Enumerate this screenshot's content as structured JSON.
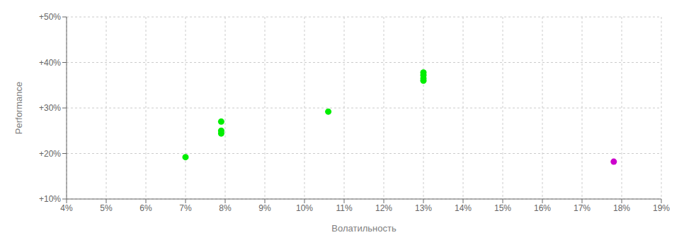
{
  "chart_data": {
    "type": "scatter",
    "xlabel": "Волатильность",
    "ylabel": "Performance",
    "xlim": [
      0.04,
      0.19
    ],
    "ylim": [
      0.1,
      0.5
    ],
    "xticks": [
      {
        "value": 0.04,
        "label": "4%"
      },
      {
        "value": 0.05,
        "label": "5%"
      },
      {
        "value": 0.06,
        "label": "6%"
      },
      {
        "value": 0.07,
        "label": "7%"
      },
      {
        "value": 0.08,
        "label": "8%"
      },
      {
        "value": 0.09,
        "label": "9%"
      },
      {
        "value": 0.1,
        "label": "10%"
      },
      {
        "value": 0.11,
        "label": "11%"
      },
      {
        "value": 0.12,
        "label": "12%"
      },
      {
        "value": 0.13,
        "label": "13%"
      },
      {
        "value": 0.14,
        "label": "14%"
      },
      {
        "value": 0.15,
        "label": "15%"
      },
      {
        "value": 0.16,
        "label": "16%"
      },
      {
        "value": 0.17,
        "label": "17%"
      },
      {
        "value": 0.18,
        "label": "18%"
      },
      {
        "value": 0.19,
        "label": "19%"
      }
    ],
    "yticks": [
      {
        "value": 0.1,
        "label": "+10%"
      },
      {
        "value": 0.2,
        "label": "+20%"
      },
      {
        "value": 0.3,
        "label": "+30%"
      },
      {
        "value": 0.4,
        "label": "+40%"
      },
      {
        "value": 0.5,
        "label": "+50%"
      }
    ],
    "grid": true,
    "series": [
      {
        "color": "#00ee00",
        "x": [
          0.07,
          0.079,
          0.079,
          0.079,
          0.106,
          0.13,
          0.13,
          0.13,
          0.13
        ],
        "values": [
          0.192,
          0.27,
          0.25,
          0.244,
          0.292,
          0.378,
          0.372,
          0.365,
          0.36
        ]
      },
      {
        "color": "#cc00cc",
        "x": [
          0.178
        ],
        "values": [
          0.182
        ]
      }
    ]
  }
}
